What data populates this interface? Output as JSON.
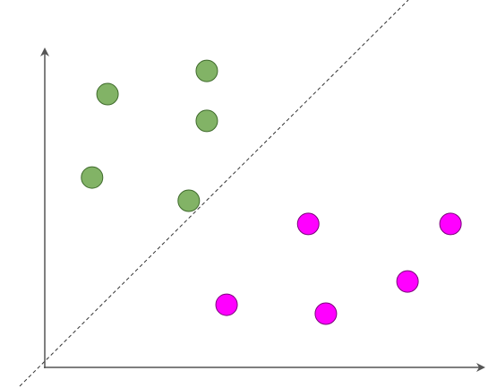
{
  "chart_data": {
    "type": "scatter",
    "xlim": [
      0,
      10
    ],
    "ylim": [
      0,
      10
    ],
    "series": [
      {
        "color": "#82b366",
        "x": [
          1.46,
          3.77,
          3.77,
          1.1,
          3.35
        ],
        "y": [
          8.59,
          9.32,
          7.75,
          5.97,
          5.24
        ]
      },
      {
        "color": "#ff00ff",
        "x": [
          6.13,
          9.44,
          8.44,
          4.23,
          6.54
        ],
        "y": [
          4.51,
          4.51,
          2.7,
          1.97,
          1.69
        ]
      }
    ]
  }
}
